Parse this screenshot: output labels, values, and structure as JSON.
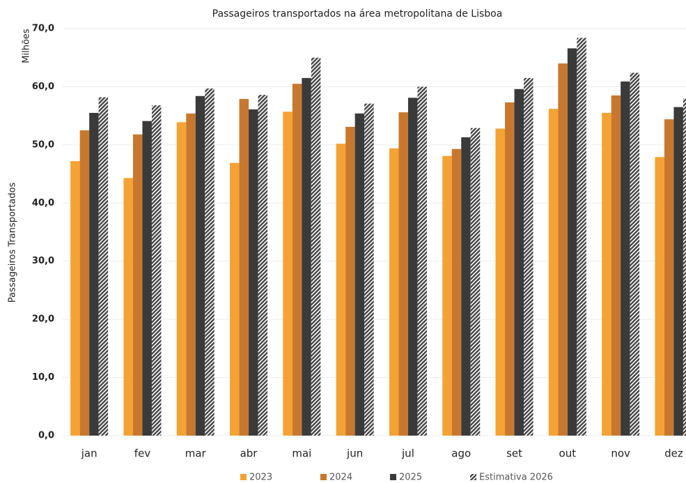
{
  "chart_data": {
    "type": "bar",
    "title": "Passageiros transportados na área metropolitana de Lisboa",
    "y_label": "Passageiros Transportados",
    "y_unit": "Milhões",
    "categories": [
      "jan",
      "fev",
      "mar",
      "abr",
      "mai",
      "jun",
      "jul",
      "ago",
      "set",
      "out",
      "nov",
      "dez"
    ],
    "series": [
      {
        "name": "2023",
        "color": "#f5a234",
        "values": [
          47.2,
          44.3,
          53.9,
          46.9,
          55.7,
          50.2,
          49.4,
          48.1,
          52.8,
          56.2,
          55.5,
          47.9
        ]
      },
      {
        "name": "2024",
        "color": "#c8782e",
        "values": [
          52.5,
          51.8,
          55.4,
          57.9,
          60.5,
          53.1,
          55.6,
          49.3,
          57.3,
          64.0,
          58.5,
          54.4
        ]
      },
      {
        "name": "2025",
        "color": "#3a3a3a",
        "values": [
          55.5,
          54.1,
          58.4,
          56.1,
          61.5,
          55.4,
          58.1,
          51.3,
          59.6,
          66.6,
          60.9,
          56.5
        ]
      },
      {
        "name": "Estimativa 2026",
        "color": "#444444",
        "pattern": "hatch",
        "values": [
          58.2,
          56.8,
          59.7,
          58.6,
          65.0,
          57.1,
          60.0,
          52.9,
          61.5,
          68.4,
          62.4,
          58.0
        ]
      }
    ],
    "ylim": [
      0,
      70
    ],
    "yticks": [
      {
        "value": 0,
        "label": "0,0"
      },
      {
        "value": 10,
        "label": "10,0"
      },
      {
        "value": 20,
        "label": "20,0"
      },
      {
        "value": 30,
        "label": "30,0"
      },
      {
        "value": 40,
        "label": "40,0"
      },
      {
        "value": 50,
        "label": "50,0"
      },
      {
        "value": 60,
        "label": "60,0"
      },
      {
        "value": 70,
        "label": "70,0"
      }
    ],
    "grid": true,
    "legend": "bottom"
  }
}
